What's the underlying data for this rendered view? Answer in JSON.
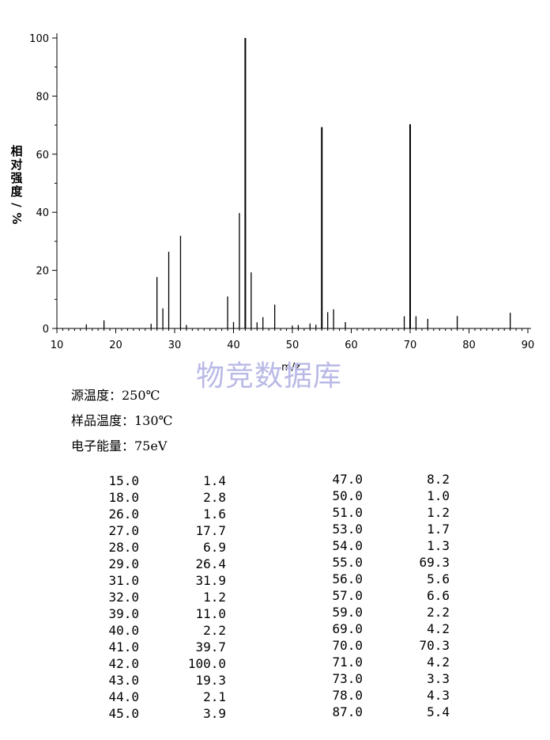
{
  "chart_data": {
    "type": "bar",
    "ylabel": "相对强度/%",
    "xlabel": "m/z",
    "xlim": [
      10,
      90
    ],
    "ylim": [
      0,
      100
    ],
    "xticks": [
      10,
      20,
      30,
      40,
      50,
      60,
      70,
      80,
      90
    ],
    "yticks": [
      0,
      20,
      40,
      60,
      80,
      100
    ],
    "peaks": [
      {
        "mz": 15.0,
        "intensity": 1.4
      },
      {
        "mz": 18.0,
        "intensity": 2.8
      },
      {
        "mz": 26.0,
        "intensity": 1.6
      },
      {
        "mz": 27.0,
        "intensity": 17.7
      },
      {
        "mz": 28.0,
        "intensity": 6.9
      },
      {
        "mz": 29.0,
        "intensity": 26.4
      },
      {
        "mz": 31.0,
        "intensity": 31.9
      },
      {
        "mz": 32.0,
        "intensity": 1.2
      },
      {
        "mz": 39.0,
        "intensity": 11.0
      },
      {
        "mz": 40.0,
        "intensity": 2.2
      },
      {
        "mz": 41.0,
        "intensity": 39.7
      },
      {
        "mz": 42.0,
        "intensity": 100.0
      },
      {
        "mz": 43.0,
        "intensity": 19.3
      },
      {
        "mz": 44.0,
        "intensity": 2.1
      },
      {
        "mz": 45.0,
        "intensity": 3.9
      },
      {
        "mz": 47.0,
        "intensity": 8.2
      },
      {
        "mz": 50.0,
        "intensity": 1.0
      },
      {
        "mz": 51.0,
        "intensity": 1.2
      },
      {
        "mz": 53.0,
        "intensity": 1.7
      },
      {
        "mz": 54.0,
        "intensity": 1.3
      },
      {
        "mz": 55.0,
        "intensity": 69.3
      },
      {
        "mz": 56.0,
        "intensity": 5.6
      },
      {
        "mz": 57.0,
        "intensity": 6.6
      },
      {
        "mz": 59.0,
        "intensity": 2.2
      },
      {
        "mz": 69.0,
        "intensity": 4.2
      },
      {
        "mz": 70.0,
        "intensity": 70.3
      },
      {
        "mz": 71.0,
        "intensity": 4.2
      },
      {
        "mz": 73.0,
        "intensity": 3.3
      },
      {
        "mz": 78.0,
        "intensity": 4.3
      },
      {
        "mz": 87.0,
        "intensity": 5.4
      }
    ]
  },
  "watermark": "物竞数据库",
  "conditions": {
    "source_temp": "源温度：250℃",
    "sample_temp": "样品温度：130℃",
    "electron_energy": "电子能量：75eV"
  },
  "table_left": [
    [
      "15.0",
      "1.4"
    ],
    [
      "18.0",
      "2.8"
    ],
    [
      "26.0",
      "1.6"
    ],
    [
      "27.0",
      "17.7"
    ],
    [
      "28.0",
      "6.9"
    ],
    [
      "29.0",
      "26.4"
    ],
    [
      "31.0",
      "31.9"
    ],
    [
      "32.0",
      "1.2"
    ],
    [
      "39.0",
      "11.0"
    ],
    [
      "40.0",
      "2.2"
    ],
    [
      "41.0",
      "39.7"
    ],
    [
      "42.0",
      "100.0"
    ],
    [
      "43.0",
      "19.3"
    ],
    [
      "44.0",
      "2.1"
    ],
    [
      "45.0",
      "3.9"
    ]
  ],
  "table_right": [
    [
      "47.0",
      "8.2"
    ],
    [
      "50.0",
      "1.0"
    ],
    [
      "51.0",
      "1.2"
    ],
    [
      "53.0",
      "1.7"
    ],
    [
      "54.0",
      "1.3"
    ],
    [
      "55.0",
      "69.3"
    ],
    [
      "56.0",
      "5.6"
    ],
    [
      "57.0",
      "6.6"
    ],
    [
      "59.0",
      "2.2"
    ],
    [
      "69.0",
      "4.2"
    ],
    [
      "70.0",
      "70.3"
    ],
    [
      "71.0",
      "4.2"
    ],
    [
      "73.0",
      "3.3"
    ],
    [
      "78.0",
      "4.3"
    ],
    [
      "87.0",
      "5.4"
    ]
  ]
}
